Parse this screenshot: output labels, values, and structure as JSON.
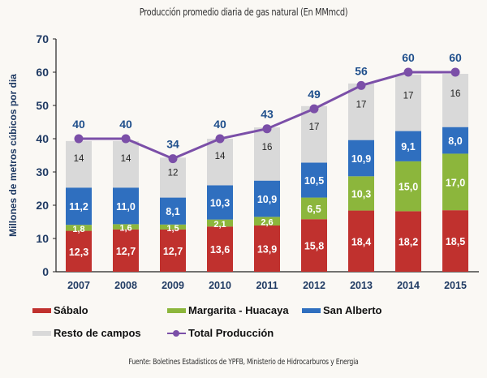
{
  "chart_data": {
    "type": "bar",
    "stacked": true,
    "title": "Producción promedio diaria de gas natural (En MMmcd)",
    "xlabel": "",
    "ylabel": "Millones de metros cúbicos por dia",
    "ylim": [
      0,
      70
    ],
    "yticks": [
      0,
      10,
      20,
      30,
      40,
      50,
      60,
      70
    ],
    "grid": false,
    "legend_position": "bottom",
    "categories": [
      "2007",
      "2008",
      "2009",
      "2010",
      "2011",
      "2012",
      "2013",
      "2014",
      "2015"
    ],
    "series": [
      {
        "name": "Sábalo",
        "type": "bar",
        "color": "#c0312e",
        "values": [
          12.3,
          12.7,
          12.7,
          13.6,
          13.9,
          15.8,
          18.4,
          18.2,
          18.5
        ],
        "labels": [
          "12,3",
          "12,7",
          "12,7",
          "13,6",
          "13,9",
          "15,8",
          "18,4",
          "18,2",
          "18,5"
        ]
      },
      {
        "name": "Margarita - Huacaya",
        "type": "bar",
        "color": "#8cb63c",
        "values": [
          1.8,
          1.6,
          1.5,
          2.1,
          2.6,
          6.5,
          10.3,
          15.0,
          17.0
        ],
        "labels": [
          "1,8",
          "1,6",
          "1,5",
          "2,1",
          "2,6",
          "6,5",
          "10,3",
          "15,0",
          "17,0"
        ]
      },
      {
        "name": "San Alberto",
        "type": "bar",
        "color": "#2f6fbf",
        "values": [
          11.2,
          11.0,
          8.1,
          10.3,
          10.9,
          10.5,
          10.9,
          9.1,
          8.0
        ],
        "labels": [
          "11,2",
          "11,0",
          "8,1",
          "10,3",
          "10,9",
          "10,5",
          "10,9",
          "9,1",
          "8,0"
        ]
      },
      {
        "name": "Resto de campos",
        "type": "bar",
        "color": "#d9d9d9",
        "values": [
          14,
          14,
          12,
          14,
          16,
          17,
          17,
          17,
          16
        ],
        "labels": [
          "14",
          "14",
          "12",
          "14",
          "16",
          "17",
          "17",
          "17",
          "16"
        ]
      },
      {
        "name": "Total Producción",
        "type": "line",
        "color": "#7b4fa8",
        "values": [
          40,
          40,
          34,
          40,
          43,
          49,
          56,
          60,
          60
        ],
        "labels": [
          "40",
          "40",
          "34",
          "40",
          "43",
          "49",
          "56",
          "60",
          "60"
        ]
      }
    ]
  },
  "legend": [
    {
      "label": "Sábalo",
      "color": "#c0312e",
      "kind": "swatch"
    },
    {
      "label": "Margarita - Huacaya",
      "color": "#8cb63c",
      "kind": "swatch"
    },
    {
      "label": "San Alberto",
      "color": "#2f6fbf",
      "kind": "swatch"
    },
    {
      "label": "Resto de campos",
      "color": "#d9d9d9",
      "kind": "swatch"
    },
    {
      "label": "Total Producción",
      "color": "#7b4fa8",
      "kind": "line"
    }
  ],
  "source": "Fuente: Boletines Estadisticos de YPFB, Ministerio de Hidrocarburos y Energia"
}
